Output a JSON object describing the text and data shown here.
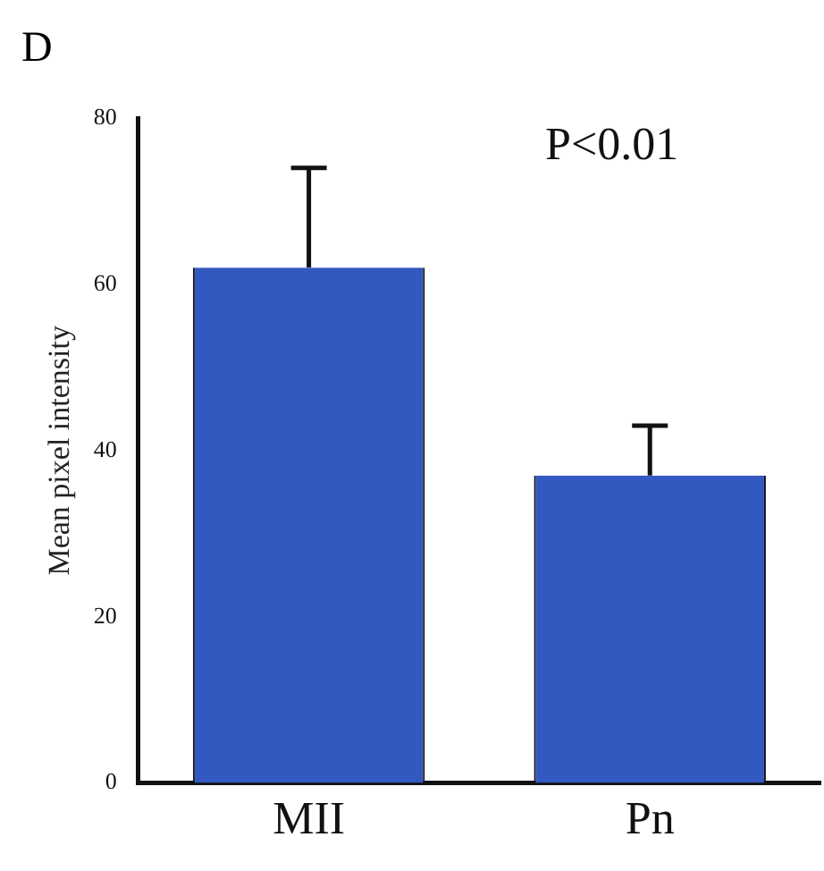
{
  "chart_data": {
    "type": "bar",
    "ylabel": "Mean pixel intensity",
    "categories": [
      "MII",
      "Pn"
    ],
    "values": [
      62,
      37
    ],
    "color": "#3358c0",
    "errors": [
      [
        62,
        74
      ],
      [
        37,
        43
      ]
    ],
    "ylim": [
      0,
      80
    ],
    "yticks": [
      0,
      20,
      40,
      60,
      80
    ],
    "grid": false,
    "legend": false,
    "annotations": [
      "D",
      "P<0.01"
    ]
  }
}
